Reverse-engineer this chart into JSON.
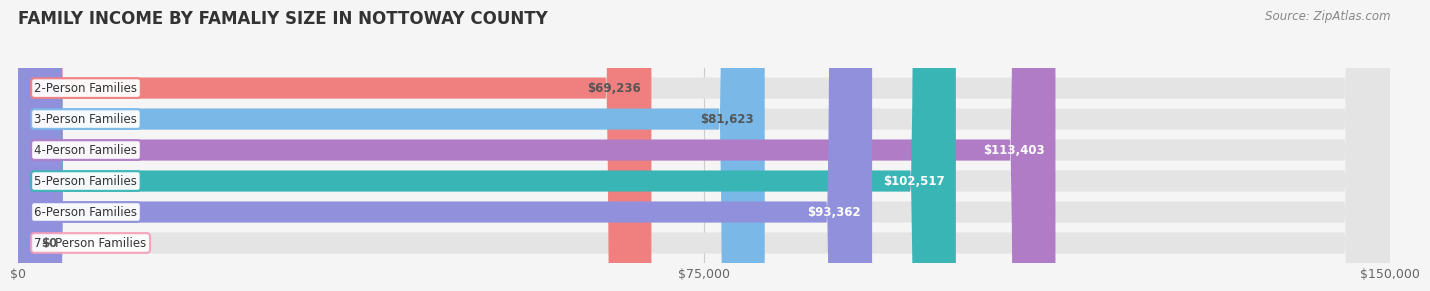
{
  "title": "FAMILY INCOME BY FAMALIY SIZE IN NOTTOWAY COUNTY",
  "source": "Source: ZipAtlas.com",
  "categories": [
    "2-Person Families",
    "3-Person Families",
    "4-Person Families",
    "5-Person Families",
    "6-Person Families",
    "7+ Person Families"
  ],
  "values": [
    69236,
    81623,
    113403,
    102517,
    93362,
    0
  ],
  "bar_colors": [
    "#f08080",
    "#7ab8e8",
    "#b07cc6",
    "#3ab5b5",
    "#9090dd",
    "#f4a0b8"
  ],
  "value_label_colors": [
    "#555555",
    "#555555",
    "#ffffff",
    "#ffffff",
    "#ffffff",
    "#555555"
  ],
  "xlim": [
    0,
    150000
  ],
  "xticks": [
    0,
    75000,
    150000
  ],
  "xtick_labels": [
    "$0",
    "$75,000",
    "$150,000"
  ],
  "background_color": "#f5f5f5",
  "bar_bg_color": "#e4e4e4",
  "title_fontsize": 12,
  "source_fontsize": 8.5,
  "bar_height": 0.68,
  "value_fontsize": 8.5,
  "label_fontsize": 8.5
}
